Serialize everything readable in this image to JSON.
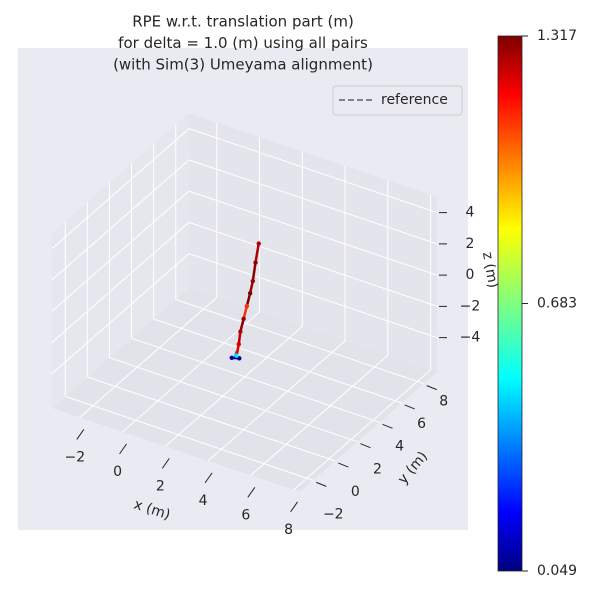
{
  "chart_data": {
    "type": "line3d",
    "title": [
      "RPE w.r.t. translation part (m)",
      "for delta = 1.0 (m) using all pairs",
      "(with Sim(3) Umeyama alignment)"
    ],
    "xlabel": "x (m)",
    "ylabel": "y (m)",
    "zlabel": "z (m)",
    "xlim": [
      -3.3,
      8.3
    ],
    "ylim": [
      -3.2,
      9.2
    ],
    "zlim": [
      -6.2,
      5.0
    ],
    "xticks": [
      {
        "value": -2,
        "label": "−2"
      },
      0,
      2,
      4,
      6,
      8
    ],
    "yticks": [
      {
        "value": -2,
        "label": "−2"
      },
      0,
      2,
      4,
      6,
      8
    ],
    "zticks": [
      {
        "value": -4,
        "label": "−4"
      },
      {
        "value": -2,
        "label": "−2"
      },
      0,
      2,
      4
    ],
    "grid": true,
    "legend": "upper right",
    "series": [
      {
        "name": "reference",
        "color": "#606060",
        "dashed": true,
        "x": [
          3.4,
          3.55,
          3.6,
          3.7,
          3.8,
          3.9,
          4.0,
          4.1,
          4.2
        ],
        "y": [
          0.35,
          0.4,
          0.5,
          0.6,
          0.7,
          0.8,
          0.85,
          0.9,
          1.0
        ],
        "z": [
          -2.0,
          -1.3,
          -0.5,
          0.4,
          1.2,
          2.0,
          2.8,
          4.0,
          5.2
        ]
      }
    ],
    "trajectory": {
      "colormap": "jet",
      "x": [
        3.3,
        3.6,
        3.5,
        3.55,
        3.6,
        3.7,
        3.8,
        3.9,
        4.0,
        4.1,
        4.2
      ],
      "y": [
        0.3,
        0.4,
        0.35,
        0.45,
        0.5,
        0.6,
        0.7,
        0.8,
        0.85,
        0.9,
        1.0
      ],
      "z": [
        -2.1,
        -2.05,
        -1.9,
        -1.2,
        -0.4,
        0.4,
        1.2,
        2.0,
        2.8,
        4.0,
        5.2
      ],
      "values": [
        0.1,
        0.05,
        0.5,
        1.2,
        1.25,
        1.3,
        1.1,
        1.317,
        1.28,
        1.3,
        1.25
      ]
    },
    "colorbar": {
      "lim": [
        0.049,
        1.317
      ],
      "ticks": [
        0.049,
        0.683,
        1.317
      ]
    }
  }
}
